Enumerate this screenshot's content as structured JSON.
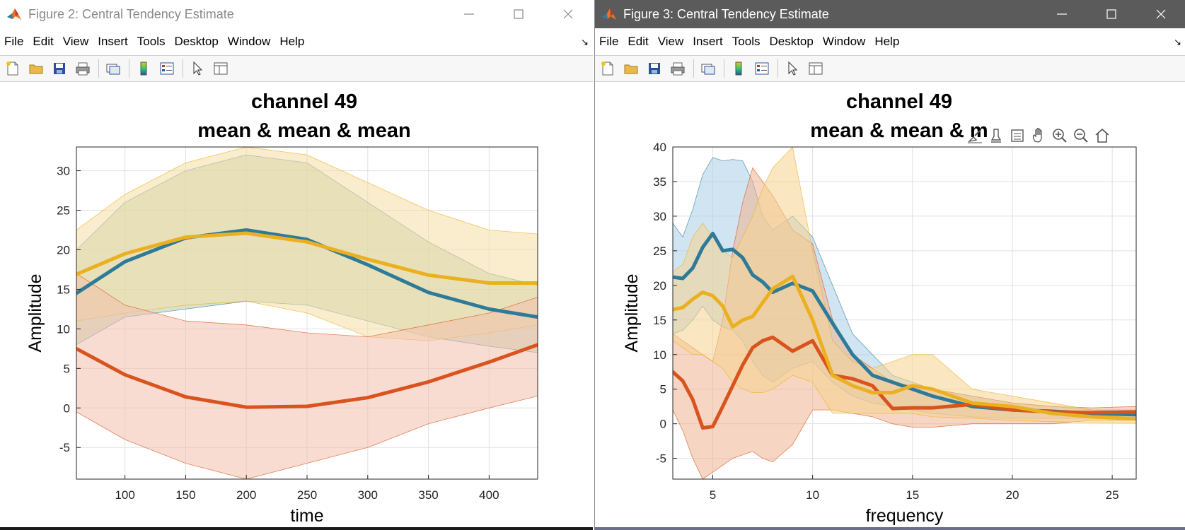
{
  "menus": [
    "File",
    "Edit",
    "View",
    "Insert",
    "Tools",
    "Desktop",
    "Window",
    "Help"
  ],
  "figures": [
    {
      "window_title": "Figure 2: Central Tendency Estimate",
      "active": false,
      "chart_data": {
        "type": "line",
        "title": [
          "channel 49",
          "mean & mean & mean"
        ],
        "xlabel": "time",
        "ylabel": "Amplitude",
        "xlim": [
          60,
          440
        ],
        "ylim": [
          -9,
          33
        ],
        "xticks": [
          100,
          150,
          200,
          250,
          300,
          350,
          400
        ],
        "yticks": [
          -5,
          0,
          5,
          10,
          15,
          20,
          25,
          30
        ],
        "grid": true,
        "legend": "none",
        "series": [
          {
            "color": "#2e7a99",
            "band_color": "#b8cba8",
            "x": [
              60,
              100,
              150,
              200,
              250,
              300,
              350,
              400,
              440
            ],
            "values": [
              14.5,
              18.5,
              21.5,
              22.5,
              21.3,
              18.1,
              14.6,
              12.5,
              11.5
            ],
            "upper": [
              20,
              26,
              30,
              32,
              31,
              26,
              21,
              17,
              15.5
            ],
            "lower": [
              8,
              11.5,
              12.5,
              13.5,
              13,
              11,
              9,
              7.8,
              7
            ]
          },
          {
            "color": "#ebb020",
            "band_color": "#f5dfa6",
            "x": [
              60,
              100,
              150,
              200,
              250,
              300,
              350,
              400,
              440
            ],
            "values": [
              16.9,
              19.5,
              21.6,
              22.1,
              21.0,
              18.8,
              16.8,
              15.8,
              15.8
            ],
            "upper": [
              22.5,
              27,
              31,
              33,
              32,
              28.5,
              25,
              22.5,
              22
            ],
            "lower": [
              11,
              12,
              13,
              13.5,
              12,
              9,
              8.5,
              9.5,
              10.5
            ]
          },
          {
            "color": "#d9531e",
            "band_color": "#f2c0ac",
            "x": [
              60,
              100,
              150,
              200,
              250,
              300,
              350,
              400,
              440
            ],
            "values": [
              7.5,
              4.2,
              1.4,
              0.1,
              0.2,
              1.3,
              3.3,
              5.8,
              8.0
            ],
            "upper": [
              17,
              13,
              11,
              10.5,
              9.5,
              9,
              10.5,
              12,
              14
            ],
            "lower": [
              -0.5,
              -4,
              -7,
              -9,
              -7,
              -5,
              -2,
              0,
              1.5
            ]
          }
        ]
      }
    },
    {
      "window_title": "Figure 3: Central Tendency Estimate",
      "active": true,
      "chart_data": {
        "type": "line",
        "title": [
          "channel 49",
          "mean & mean & m"
        ],
        "xlabel": "frequency",
        "ylabel": "Amplitude",
        "xlim": [
          3,
          26.2
        ],
        "ylim": [
          -8,
          40
        ],
        "xticks": [
          5,
          10,
          15,
          20,
          25
        ],
        "yticks": [
          -5,
          0,
          5,
          10,
          15,
          20,
          25,
          30,
          35,
          40
        ],
        "grid": true,
        "legend": "none",
        "series": [
          {
            "color": "#2e7a99",
            "band_color": "#a9cfe6",
            "x": [
              3,
              3.5,
              4,
              4.5,
              5,
              5.5,
              6,
              6.5,
              7,
              7.5,
              8,
              9,
              10,
              11,
              12,
              13,
              14,
              15,
              16,
              18,
              20,
              22,
              24,
              26.2
            ],
            "values": [
              21.2,
              21,
              22.5,
              25.5,
              27.5,
              25,
              25.2,
              24,
              21.5,
              20.5,
              19,
              20.3,
              19.2,
              14.5,
              10,
              7,
              6,
              5,
              4,
              2.5,
              2,
              1.8,
              1.5,
              1.3
            ],
            "upper": [
              29,
              27,
              31,
              36,
              38.5,
              38,
              38.2,
              38,
              35,
              30,
              28,
              30,
              27,
              20,
              13,
              10,
              7,
              6,
              5,
              4,
              3,
              2.5,
              2,
              2
            ],
            "lower": [
              13,
              13.5,
              15,
              17,
              15,
              14,
              13.5,
              12,
              9,
              7,
              6,
              8,
              9,
              6,
              4,
              3,
              2.5,
              2,
              1.5,
              1,
              0.8,
              0.8,
              0.8,
              0.8
            ]
          },
          {
            "color": "#d9531e",
            "band_color": "#efb38f",
            "x": [
              3,
              3.5,
              4,
              4.5,
              5,
              5.5,
              6,
              6.5,
              7,
              7.5,
              8,
              9,
              10,
              11,
              12,
              13,
              14,
              15,
              16,
              18,
              20,
              22,
              24,
              26.2
            ],
            "values": [
              7.5,
              6.2,
              3.5,
              -0.6,
              -0.4,
              2.5,
              5.5,
              8.5,
              11,
              12,
              12.5,
              10.5,
              12,
              7,
              6.5,
              5.5,
              2.2,
              2.3,
              2.3,
              2.8,
              2,
              1.7,
              1.6,
              1.7
            ],
            "upper": [
              13,
              12,
              11,
              10,
              9,
              15,
              25,
              32,
              37,
              35,
              33,
              28,
              26,
              15,
              10,
              8,
              6,
              5.5,
              5,
              4,
              3,
              2.5,
              2.3,
              2.5
            ],
            "lower": [
              2,
              -1,
              -5,
              -8,
              -7,
              -6,
              -5,
              -4.5,
              -4,
              -5,
              -5.5,
              -3,
              2,
              2,
              1.5,
              1,
              0,
              -0.5,
              -0.5,
              0,
              0,
              0,
              0.5,
              0.5
            ]
          },
          {
            "color": "#ebb020",
            "band_color": "#f5d490",
            "x": [
              3,
              3.5,
              4,
              4.5,
              5,
              5.5,
              6,
              6.5,
              7,
              7.5,
              8,
              9,
              10,
              11,
              12,
              13,
              14,
              15,
              16,
              18,
              20,
              22,
              24,
              26.2
            ],
            "values": [
              16.5,
              16.8,
              18,
              19,
              18.5,
              17,
              14,
              15,
              15.5,
              17.5,
              19.5,
              21.3,
              15,
              7,
              5.5,
              4.5,
              4.5,
              5.5,
              5,
              3,
              2.5,
              1.5,
              1,
              0.7
            ],
            "upper": [
              22,
              23,
              27,
              29,
              27,
              25,
              24,
              27,
              30,
              34,
              37,
              40,
              25,
              12,
              9,
              8,
              9,
              10,
              10,
              5,
              4,
              3,
              2,
              1.5
            ],
            "lower": [
              12,
              11,
              10,
              10,
              9,
              8,
              6,
              5,
              4.5,
              4.5,
              5,
              7,
              6,
              1.5,
              1.5,
              1.5,
              1.5,
              1.5,
              1,
              0.8,
              0.5,
              0.3,
              0.2,
              0.1
            ]
          }
        ]
      }
    }
  ]
}
